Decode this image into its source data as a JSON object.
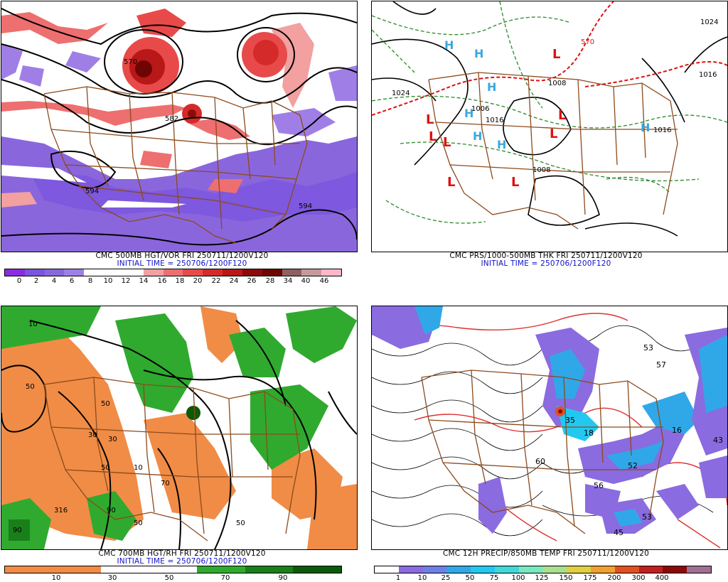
{
  "panels": [
    {
      "title": "CMC 500MB HGT/VOR FRI 250711/1200V120",
      "init": "INITIAL TIME = 250706/1200F120",
      "colorbar": {
        "colors": [
          "#8a2be2",
          "#7b55e0",
          "#8a66dd",
          "#9f7fe6",
          "#ffffff",
          "#ffffff",
          "#ffffff",
          "#f2a0a0",
          "#ee6f6f",
          "#e84a4a",
          "#d52a2a",
          "#b81818",
          "#8c0b0b",
          "#6f0404",
          "#8f6060",
          "#c79a9a",
          "#ffb6c8"
        ],
        "labels": [
          "0",
          "2",
          "4",
          "6",
          "8",
          "10",
          "12",
          "14",
          "16",
          "18",
          "20",
          "22",
          "24",
          "26",
          "28",
          "34",
          "40",
          "46"
        ]
      },
      "contour_labels": [
        "570",
        "582",
        "594",
        "594"
      ]
    },
    {
      "title": "CMC PRS/1000-500MB THK FRI 250711/1200V120",
      "init": "INITIAL TIME = 250706/1200F120",
      "contour_labels": [
        "1024",
        "1024",
        "1016",
        "1008",
        "1016",
        "1008",
        "1016",
        "1006",
        "570"
      ],
      "highs": [
        "H",
        "H",
        "H",
        "H",
        "H",
        "H",
        "H"
      ],
      "lows": [
        "L",
        "L",
        "L",
        "L",
        "L",
        "L",
        "L",
        "L"
      ]
    },
    {
      "title": "CMC 700MB HGT/RH FRI 250711/1200V120",
      "init": "INITIAL TIME = 250706/1200F120",
      "colorbar": {
        "colors": [
          "#f08c46",
          "#f08c46",
          "#ffffff",
          "#ffffff",
          "#2faa2f",
          "#1a7f1a",
          "#0a5a0a"
        ],
        "labels": [
          "10",
          "30",
          "50",
          "70",
          "90"
        ]
      },
      "contour_labels": [
        "10",
        "50",
        "30",
        "50",
        "10",
        "50",
        "30",
        "50",
        "70",
        "90",
        "316",
        "90",
        "50"
      ]
    },
    {
      "title": "CMC 12H PRECIP/850MB TEMP FRI 250711/1200V120",
      "init": "",
      "colorbar": {
        "colors": [
          "#ffffff",
          "#8a6be0",
          "#6f7fe8",
          "#30a8e8",
          "#22c8f0",
          "#40d8d8",
          "#78e8c0",
          "#a8e090",
          "#e0d040",
          "#f0a030",
          "#e05020",
          "#c02020",
          "#8a0a0a",
          "#a07090"
        ],
        "labels": [
          "1",
          "10",
          "25",
          "50",
          "75",
          "100",
          "125",
          "150",
          "175",
          "200",
          "300",
          "400"
        ]
      },
      "contour_labels": [
        "53",
        "57",
        "52",
        "56",
        "45",
        "53",
        "16",
        "18",
        "35",
        "60",
        "43"
      ]
    }
  ]
}
